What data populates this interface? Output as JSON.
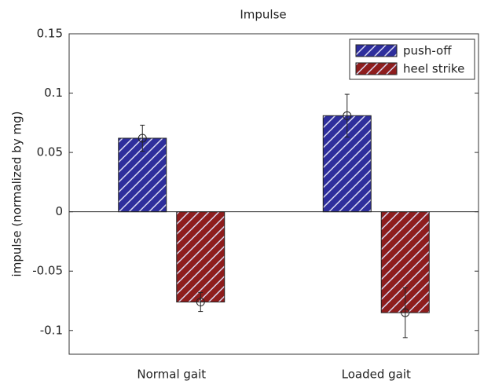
{
  "chart_data": {
    "type": "bar",
    "title": "Impulse",
    "y_label": "impulse (normalized by mg)",
    "categories": [
      "Normal gait",
      "Loaded gait"
    ],
    "series": [
      {
        "name": "push-off",
        "color": "#2e2e9c",
        "values": [
          0.062,
          0.081
        ],
        "errors": [
          0.011,
          0.018
        ]
      },
      {
        "name": "heel strike",
        "color": "#8e1d1d",
        "values": [
          -0.076,
          -0.085
        ],
        "errors": [
          0.008,
          0.021
        ]
      }
    ],
    "ylim": [
      -0.12,
      0.15
    ],
    "yticks": [
      -0.1,
      -0.05,
      0,
      0.05,
      0.1,
      0.15
    ],
    "legend": "upper right",
    "grid": false
  }
}
